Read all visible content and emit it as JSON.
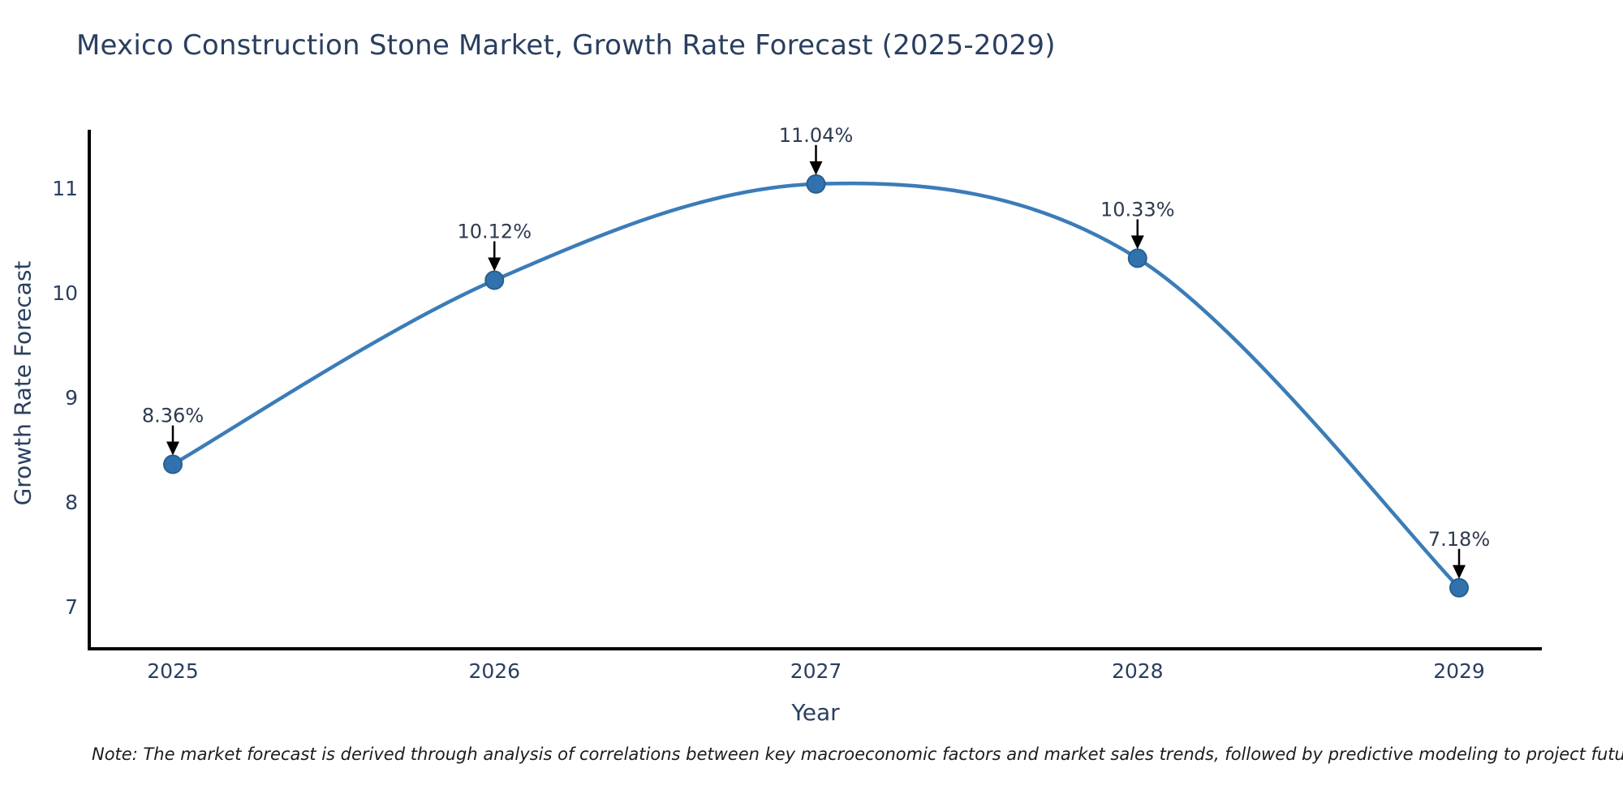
{
  "title": "Mexico Construction Stone Market, Growth Rate Forecast (2025-2029)",
  "note": "Note: The market forecast is derived through analysis of correlations between key macroeconomic factors and market sales trends, followed by predictive modeling to project future sales.",
  "chart_data": {
    "type": "line",
    "x": [
      2025,
      2026,
      2027,
      2028,
      2029
    ],
    "series": [
      {
        "name": "Growth Rate Forecast",
        "values": [
          8.36,
          10.12,
          11.04,
          10.33,
          7.18
        ]
      }
    ],
    "point_labels": [
      "8.36%",
      "10.12%",
      "11.04%",
      "10.33%",
      "7.18%"
    ],
    "title": "Mexico Construction Stone Market, Growth Rate Forecast (2025-2029)",
    "xlabel": "Year",
    "ylabel": "Growth Rate Forecast",
    "x_ticks": [
      2025,
      2026,
      2027,
      2028,
      2029
    ],
    "y_ticks": [
      7,
      8,
      9,
      10,
      11
    ],
    "xlim": [
      2024.74,
      2029.26
    ],
    "ylim": [
      6.6,
      11.56
    ],
    "grid": false,
    "legend": false,
    "line_shape": "spline",
    "annotations_have_arrows": true,
    "colors": {
      "line": "#3b7cb8",
      "marker_fill": "#3172ae",
      "marker_edge": "#27608f",
      "axis_line": "#000000",
      "tick_text": "#2a3f5f",
      "title_text": "#2a3f5f",
      "annotation_text": "#2e3a50",
      "annotation_arrow": "#000000",
      "background": "#ffffff"
    }
  }
}
